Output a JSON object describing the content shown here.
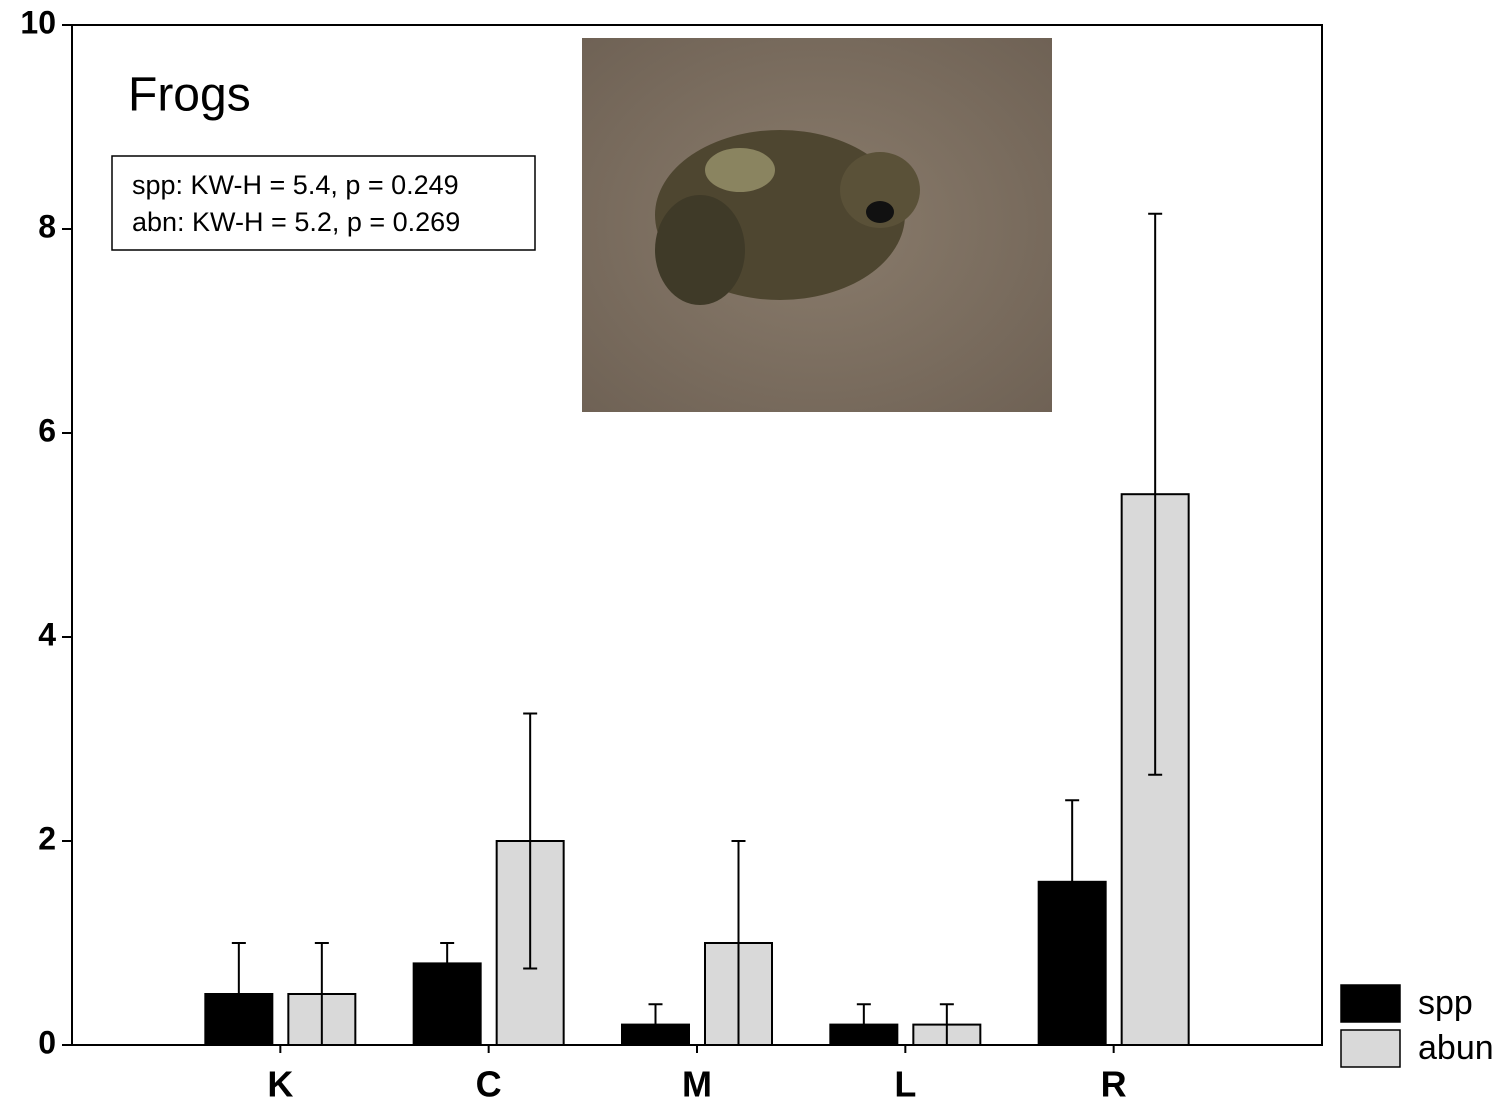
{
  "chart_data": {
    "type": "bar",
    "title": "Frogs",
    "annotations": [
      "spp: KW-H = 5.4, p = 0.249",
      "abn: KW-H = 5.2, p = 0.269"
    ],
    "categories": [
      "K",
      "C",
      "M",
      "L",
      "R"
    ],
    "series": [
      {
        "name": "spp",
        "color": "#000000",
        "values": [
          0.5,
          0.8,
          0.2,
          0.2,
          1.6
        ],
        "errors": [
          0.5,
          0.2,
          0.2,
          0.2,
          0.8
        ]
      },
      {
        "name": "abun",
        "color": "#d9d9d9",
        "values": [
          0.5,
          2.0,
          1.0,
          0.2,
          5.4
        ],
        "errors": [
          0.5,
          1.25,
          1.0,
          0.2,
          2.75
        ]
      }
    ],
    "ylim": [
      0,
      10
    ],
    "yticks": [
      0,
      2,
      4,
      6,
      8,
      10
    ],
    "grid": false,
    "legend": "bottom-right"
  }
}
